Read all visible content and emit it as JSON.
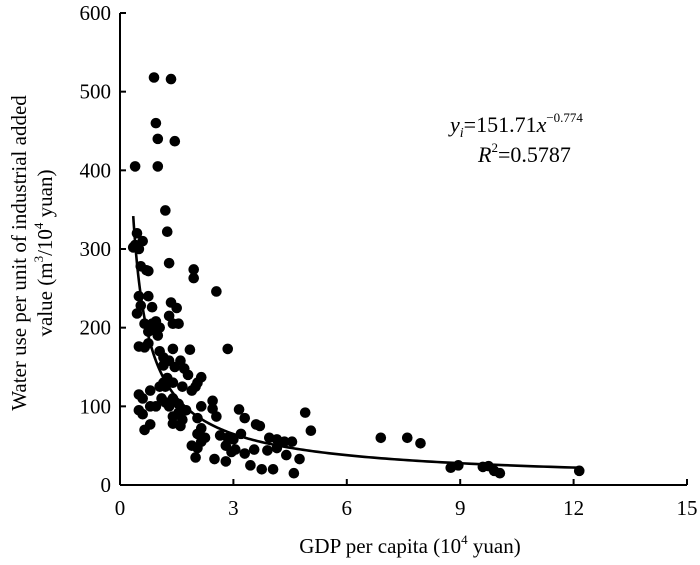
{
  "chart_data": {
    "type": "scatter",
    "xlabel": {
      "pre": "GDP per capita  (10",
      "sup": "4",
      "post": " yuan)"
    },
    "ylabel": {
      "line1": "Water use  per unit of industrial added",
      "line2_pre": "value (m",
      "line2_sup1": "3",
      "line2_mid": "/10",
      "line2_sup2": "4",
      "line2_post": " yuan)"
    },
    "xlim": [
      0,
      15
    ],
    "ylim": [
      0,
      600
    ],
    "xticks": [
      "0",
      "3",
      "6",
      "9",
      "12",
      "15"
    ],
    "yticks": [
      "0",
      "100",
      "200",
      "300",
      "400",
      "500",
      "600"
    ],
    "grid": false,
    "equation": {
      "y_var": "y",
      "y_sub": "i",
      "rhs": "=151.71",
      "x_var": "x",
      "exp": "−0.774",
      "r_var": "R",
      "r_sup": "2",
      "r_val": "=0.5787"
    },
    "fit": {
      "a": 151.71,
      "b": -0.774,
      "x_min": 0.35,
      "x_max": 12.15
    },
    "points": [
      [
        0.9,
        518
      ],
      [
        1.35,
        516
      ],
      [
        0.95,
        460
      ],
      [
        1.0,
        440
      ],
      [
        1.45,
        437
      ],
      [
        1.0,
        405
      ],
      [
        0.4,
        405
      ],
      [
        1.2,
        349
      ],
      [
        1.25,
        322
      ],
      [
        0.45,
        320
      ],
      [
        0.6,
        310
      ],
      [
        0.4,
        305
      ],
      [
        0.5,
        300
      ],
      [
        0.35,
        302
      ],
      [
        1.3,
        282
      ],
      [
        0.55,
        278
      ],
      [
        0.7,
        273
      ],
      [
        0.75,
        272
      ],
      [
        1.95,
        274
      ],
      [
        1.95,
        263
      ],
      [
        2.55,
        246
      ],
      [
        0.5,
        240
      ],
      [
        0.75,
        240
      ],
      [
        0.55,
        228
      ],
      [
        0.85,
        226
      ],
      [
        0.45,
        218
      ],
      [
        1.35,
        232
      ],
      [
        1.5,
        225
      ],
      [
        0.65,
        205
      ],
      [
        0.85,
        205
      ],
      [
        0.95,
        208
      ],
      [
        1.05,
        200
      ],
      [
        0.75,
        195
      ],
      [
        0.9,
        197
      ],
      [
        1.0,
        190
      ],
      [
        1.4,
        205
      ],
      [
        1.55,
        205
      ],
      [
        1.3,
        215
      ],
      [
        0.75,
        180
      ],
      [
        0.65,
        175
      ],
      [
        0.5,
        176
      ],
      [
        1.05,
        170
      ],
      [
        1.4,
        173
      ],
      [
        1.85,
        172
      ],
      [
        2.85,
        173
      ],
      [
        1.15,
        162
      ],
      [
        1.3,
        158
      ],
      [
        1.6,
        158
      ],
      [
        1.15,
        152
      ],
      [
        1.45,
        150
      ],
      [
        1.7,
        148
      ],
      [
        2.0,
        125
      ],
      [
        2.05,
        130
      ],
      [
        1.15,
        130
      ],
      [
        1.25,
        136
      ],
      [
        1.4,
        130
      ],
      [
        0.8,
        120
      ],
      [
        1.05,
        125
      ],
      [
        1.2,
        125
      ],
      [
        1.65,
        125
      ],
      [
        1.8,
        140
      ],
      [
        2.15,
        137
      ],
      [
        1.9,
        120
      ],
      [
        0.5,
        115
      ],
      [
        0.6,
        110
      ],
      [
        1.1,
        110
      ],
      [
        1.2,
        105
      ],
      [
        1.4,
        110
      ],
      [
        0.8,
        100
      ],
      [
        0.95,
        100
      ],
      [
        1.3,
        100
      ],
      [
        1.55,
        103
      ],
      [
        2.45,
        107
      ],
      [
        2.15,
        100
      ],
      [
        2.45,
        97
      ],
      [
        3.15,
        96
      ],
      [
        1.55,
        92
      ],
      [
        1.75,
        95
      ],
      [
        0.5,
        95
      ],
      [
        0.6,
        90
      ],
      [
        1.4,
        87
      ],
      [
        1.65,
        83
      ],
      [
        2.05,
        85
      ],
      [
        2.55,
        87
      ],
      [
        3.3,
        85
      ],
      [
        3.6,
        77
      ],
      [
        3.7,
        75
      ],
      [
        1.4,
        78
      ],
      [
        1.6,
        75
      ],
      [
        2.15,
        72
      ],
      [
        0.8,
        77
      ],
      [
        0.65,
        70
      ],
      [
        2.05,
        65
      ],
      [
        2.25,
        60
      ],
      [
        2.65,
        63
      ],
      [
        2.85,
        60
      ],
      [
        3.0,
        58
      ],
      [
        3.2,
        65
      ],
      [
        3.95,
        60
      ],
      [
        4.15,
        58
      ],
      [
        4.35,
        55
      ],
      [
        4.55,
        55
      ],
      [
        4.9,
        92
      ],
      [
        5.05,
        69
      ],
      [
        1.9,
        50
      ],
      [
        2.05,
        47
      ],
      [
        2.15,
        55
      ],
      [
        2.8,
        50
      ],
      [
        2.95,
        42
      ],
      [
        3.05,
        45
      ],
      [
        3.3,
        40
      ],
      [
        3.55,
        45
      ],
      [
        3.9,
        44
      ],
      [
        4.15,
        47
      ],
      [
        4.4,
        38
      ],
      [
        4.75,
        33
      ],
      [
        2.0,
        35
      ],
      [
        2.5,
        33
      ],
      [
        2.8,
        30
      ],
      [
        3.45,
        25
      ],
      [
        3.75,
        20
      ],
      [
        4.05,
        20
      ],
      [
        4.6,
        15
      ],
      [
        6.9,
        60
      ],
      [
        7.6,
        60
      ],
      [
        7.95,
        53
      ],
      [
        8.75,
        22
      ],
      [
        8.95,
        25
      ],
      [
        9.6,
        23
      ],
      [
        9.75,
        24
      ],
      [
        9.9,
        18
      ],
      [
        10.05,
        15
      ],
      [
        12.15,
        18
      ]
    ]
  }
}
